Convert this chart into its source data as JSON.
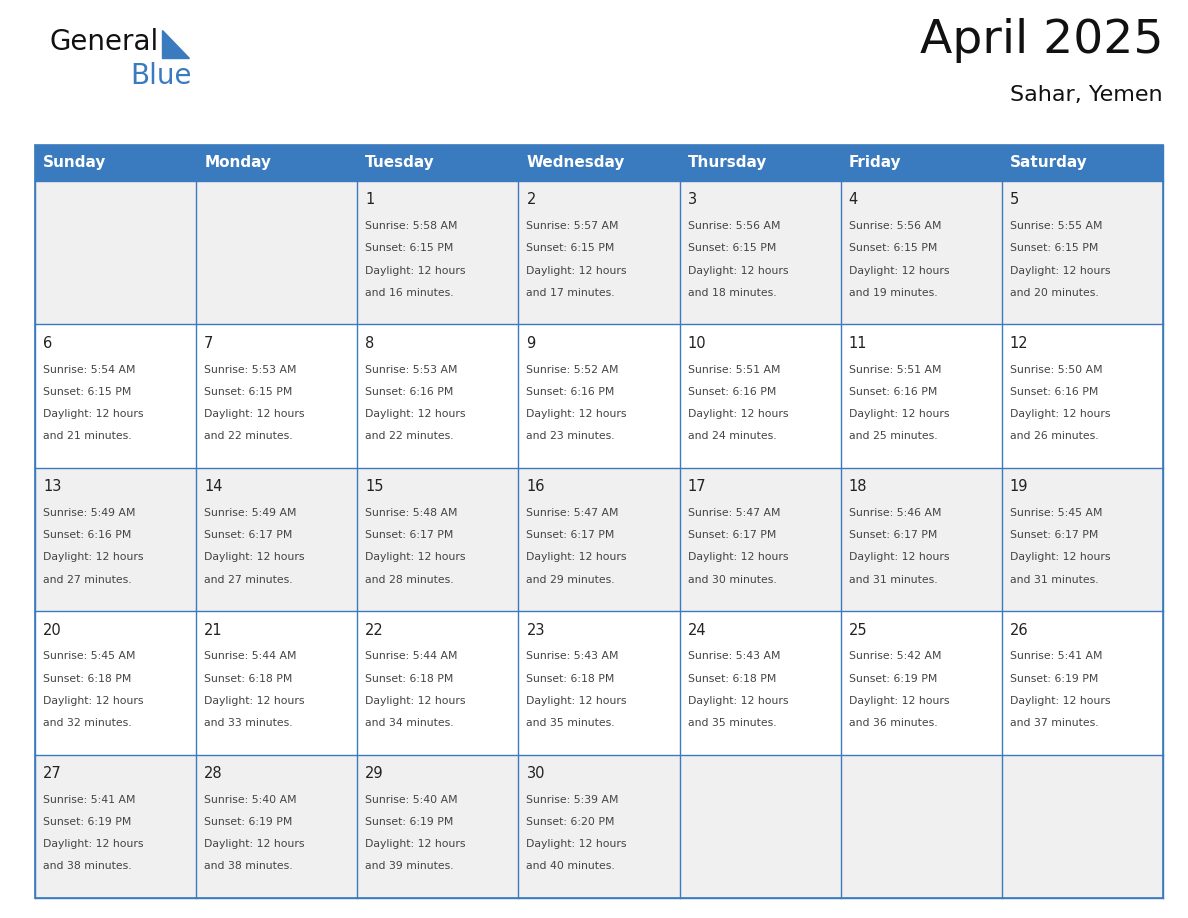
{
  "title": "April 2025",
  "subtitle": "Sahar, Yemen",
  "header_color": "#3a7abf",
  "header_text_color": "#ffffff",
  "cell_bg_even": "#f0f0f0",
  "cell_bg_odd": "#ffffff",
  "border_color": "#3a7abf",
  "text_color": "#444444",
  "day_num_color": "#222222",
  "day_names": [
    "Sunday",
    "Monday",
    "Tuesday",
    "Wednesday",
    "Thursday",
    "Friday",
    "Saturday"
  ],
  "days": [
    {
      "day": 1,
      "col": 2,
      "row": 0,
      "sunrise": "5:58 AM",
      "sunset": "6:15 PM",
      "daylight_hours": 12,
      "daylight_minutes": 16
    },
    {
      "day": 2,
      "col": 3,
      "row": 0,
      "sunrise": "5:57 AM",
      "sunset": "6:15 PM",
      "daylight_hours": 12,
      "daylight_minutes": 17
    },
    {
      "day": 3,
      "col": 4,
      "row": 0,
      "sunrise": "5:56 AM",
      "sunset": "6:15 PM",
      "daylight_hours": 12,
      "daylight_minutes": 18
    },
    {
      "day": 4,
      "col": 5,
      "row": 0,
      "sunrise": "5:56 AM",
      "sunset": "6:15 PM",
      "daylight_hours": 12,
      "daylight_minutes": 19
    },
    {
      "day": 5,
      "col": 6,
      "row": 0,
      "sunrise": "5:55 AM",
      "sunset": "6:15 PM",
      "daylight_hours": 12,
      "daylight_minutes": 20
    },
    {
      "day": 6,
      "col": 0,
      "row": 1,
      "sunrise": "5:54 AM",
      "sunset": "6:15 PM",
      "daylight_hours": 12,
      "daylight_minutes": 21
    },
    {
      "day": 7,
      "col": 1,
      "row": 1,
      "sunrise": "5:53 AM",
      "sunset": "6:15 PM",
      "daylight_hours": 12,
      "daylight_minutes": 22
    },
    {
      "day": 8,
      "col": 2,
      "row": 1,
      "sunrise": "5:53 AM",
      "sunset": "6:16 PM",
      "daylight_hours": 12,
      "daylight_minutes": 22
    },
    {
      "day": 9,
      "col": 3,
      "row": 1,
      "sunrise": "5:52 AM",
      "sunset": "6:16 PM",
      "daylight_hours": 12,
      "daylight_minutes": 23
    },
    {
      "day": 10,
      "col": 4,
      "row": 1,
      "sunrise": "5:51 AM",
      "sunset": "6:16 PM",
      "daylight_hours": 12,
      "daylight_minutes": 24
    },
    {
      "day": 11,
      "col": 5,
      "row": 1,
      "sunrise": "5:51 AM",
      "sunset": "6:16 PM",
      "daylight_hours": 12,
      "daylight_minutes": 25
    },
    {
      "day": 12,
      "col": 6,
      "row": 1,
      "sunrise": "5:50 AM",
      "sunset": "6:16 PM",
      "daylight_hours": 12,
      "daylight_minutes": 26
    },
    {
      "day": 13,
      "col": 0,
      "row": 2,
      "sunrise": "5:49 AM",
      "sunset": "6:16 PM",
      "daylight_hours": 12,
      "daylight_minutes": 27
    },
    {
      "day": 14,
      "col": 1,
      "row": 2,
      "sunrise": "5:49 AM",
      "sunset": "6:17 PM",
      "daylight_hours": 12,
      "daylight_minutes": 27
    },
    {
      "day": 15,
      "col": 2,
      "row": 2,
      "sunrise": "5:48 AM",
      "sunset": "6:17 PM",
      "daylight_hours": 12,
      "daylight_minutes": 28
    },
    {
      "day": 16,
      "col": 3,
      "row": 2,
      "sunrise": "5:47 AM",
      "sunset": "6:17 PM",
      "daylight_hours": 12,
      "daylight_minutes": 29
    },
    {
      "day": 17,
      "col": 4,
      "row": 2,
      "sunrise": "5:47 AM",
      "sunset": "6:17 PM",
      "daylight_hours": 12,
      "daylight_minutes": 30
    },
    {
      "day": 18,
      "col": 5,
      "row": 2,
      "sunrise": "5:46 AM",
      "sunset": "6:17 PM",
      "daylight_hours": 12,
      "daylight_minutes": 31
    },
    {
      "day": 19,
      "col": 6,
      "row": 2,
      "sunrise": "5:45 AM",
      "sunset": "6:17 PM",
      "daylight_hours": 12,
      "daylight_minutes": 31
    },
    {
      "day": 20,
      "col": 0,
      "row": 3,
      "sunrise": "5:45 AM",
      "sunset": "6:18 PM",
      "daylight_hours": 12,
      "daylight_minutes": 32
    },
    {
      "day": 21,
      "col": 1,
      "row": 3,
      "sunrise": "5:44 AM",
      "sunset": "6:18 PM",
      "daylight_hours": 12,
      "daylight_minutes": 33
    },
    {
      "day": 22,
      "col": 2,
      "row": 3,
      "sunrise": "5:44 AM",
      "sunset": "6:18 PM",
      "daylight_hours": 12,
      "daylight_minutes": 34
    },
    {
      "day": 23,
      "col": 3,
      "row": 3,
      "sunrise": "5:43 AM",
      "sunset": "6:18 PM",
      "daylight_hours": 12,
      "daylight_minutes": 35
    },
    {
      "day": 24,
      "col": 4,
      "row": 3,
      "sunrise": "5:43 AM",
      "sunset": "6:18 PM",
      "daylight_hours": 12,
      "daylight_minutes": 35
    },
    {
      "day": 25,
      "col": 5,
      "row": 3,
      "sunrise": "5:42 AM",
      "sunset": "6:19 PM",
      "daylight_hours": 12,
      "daylight_minutes": 36
    },
    {
      "day": 26,
      "col": 6,
      "row": 3,
      "sunrise": "5:41 AM",
      "sunset": "6:19 PM",
      "daylight_hours": 12,
      "daylight_minutes": 37
    },
    {
      "day": 27,
      "col": 0,
      "row": 4,
      "sunrise": "5:41 AM",
      "sunset": "6:19 PM",
      "daylight_hours": 12,
      "daylight_minutes": 38
    },
    {
      "day": 28,
      "col": 1,
      "row": 4,
      "sunrise": "5:40 AM",
      "sunset": "6:19 PM",
      "daylight_hours": 12,
      "daylight_minutes": 38
    },
    {
      "day": 29,
      "col": 2,
      "row": 4,
      "sunrise": "5:40 AM",
      "sunset": "6:19 PM",
      "daylight_hours": 12,
      "daylight_minutes": 39
    },
    {
      "day": 30,
      "col": 3,
      "row": 4,
      "sunrise": "5:39 AM",
      "sunset": "6:20 PM",
      "daylight_hours": 12,
      "daylight_minutes": 40
    }
  ],
  "logo_text_general": "General",
  "logo_text_blue": "Blue",
  "logo_color_general": "#111111",
  "logo_color_blue": "#3a7abf",
  "logo_triangle_color": "#3a7abf",
  "figwidth": 11.88,
  "figheight": 9.18,
  "dpi": 100
}
